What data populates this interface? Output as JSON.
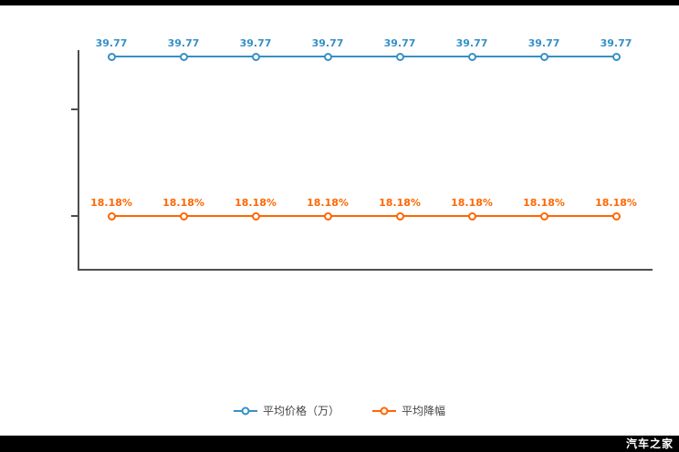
{
  "watermark": "汽车之家",
  "chart_data": {
    "type": "line",
    "title": "",
    "xlabel": "",
    "ylabel": "",
    "x": [
      "",
      "",
      "",
      "",
      "",
      "",
      "",
      ""
    ],
    "grid": false,
    "legend_position": "bottom",
    "series": [
      {
        "name": "平均价格（万）",
        "color": "#3590c7",
        "values": [
          39.77,
          39.77,
          39.77,
          39.77,
          39.77,
          39.77,
          39.77,
          39.77
        ],
        "point_labels": [
          "39.77",
          "39.77",
          "39.77",
          "39.77",
          "39.77",
          "39.77",
          "39.77",
          "39.77"
        ],
        "y_frac": 0.029
      },
      {
        "name": "平均降幅",
        "color": "#ff6600",
        "values": [
          18.18,
          18.18,
          18.18,
          18.18,
          18.18,
          18.18,
          18.18,
          18.18
        ],
        "point_labels": [
          "18.18%",
          "18.18%",
          "18.18%",
          "18.18%",
          "18.18%",
          "18.18%",
          "18.18%",
          "18.18%"
        ],
        "y_frac": 0.758
      }
    ]
  }
}
